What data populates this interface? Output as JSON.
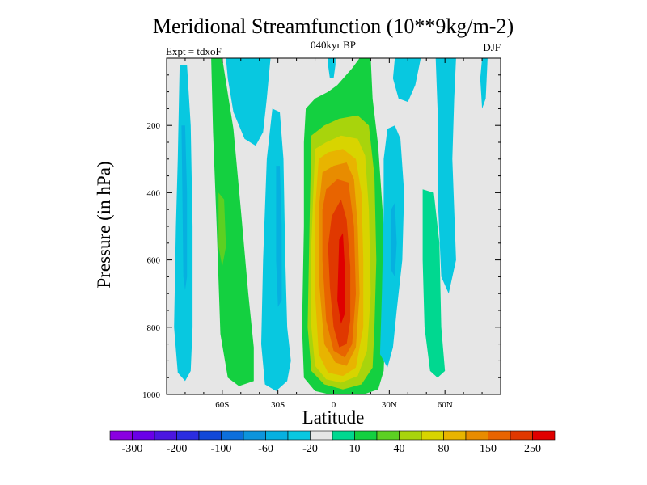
{
  "chart_data": {
    "type": "heatmap",
    "title": "Meridional Streamfunction (10**9kg/m-2)",
    "subtitle_center": "040kyr BP",
    "subtitle_left": "Expt = tdxoF",
    "subtitle_right": "DJF",
    "xlabel": "Latitude",
    "ylabel": "Pressure (in hPa)",
    "xlim": [
      -90,
      90
    ],
    "ylim": [
      1000,
      0
    ],
    "x_ticks": [
      {
        "value": -60,
        "label": "60S"
      },
      {
        "value": -30,
        "label": "30S"
      },
      {
        "value": 0,
        "label": "0"
      },
      {
        "value": 30,
        "label": "30N"
      },
      {
        "value": 60,
        "label": "60N"
      }
    ],
    "y_ticks": [
      {
        "value": 200,
        "label": "200"
      },
      {
        "value": 400,
        "label": "400"
      },
      {
        "value": 600,
        "label": "600"
      },
      {
        "value": 800,
        "label": "800"
      },
      {
        "value": 1000,
        "label": "1000"
      }
    ],
    "colorbar": {
      "labels": [
        "-300",
        "-200",
        "-100",
        "-60",
        "-20",
        "10",
        "40",
        "80",
        "150",
        "250"
      ],
      "colors": [
        "#8a00e0",
        "#6a00e8",
        "#4b16e0",
        "#2b2de0",
        "#1148d8",
        "#0d6fdc",
        "#0d94dc",
        "#06b0e0",
        "#08c8e0",
        "#e6e6e6",
        "#00d890",
        "#14d040",
        "#5cd022",
        "#a8d40c",
        "#d8d400",
        "#e8b400",
        "#e88c00",
        "#e86400",
        "#e03800",
        "#e00000"
      ]
    },
    "regions": [
      {
        "name": "blue-60s-80s",
        "color": "#08c8e0",
        "points": [
          [
            -83,
            20
          ],
          [
            -79,
            20
          ],
          [
            -77,
            200
          ],
          [
            -76,
            500
          ],
          [
            -76,
            800
          ],
          [
            -77,
            930
          ],
          [
            -80,
            960
          ],
          [
            -84,
            935
          ],
          [
            -86,
            800
          ],
          [
            -85,
            500
          ],
          [
            -84,
            300
          ]
        ]
      },
      {
        "name": "blue-60s-core",
        "color": "#06b0e0",
        "points": [
          [
            -82,
            200
          ],
          [
            -80,
            200
          ],
          [
            -79,
            400
          ],
          [
            -79,
            650
          ],
          [
            -80,
            690
          ],
          [
            -81,
            650
          ],
          [
            -81.5,
            400
          ]
        ]
      },
      {
        "name": "green-belt-60s",
        "color": "#14d040",
        "points": [
          [
            -66,
            0
          ],
          [
            -60,
            0
          ],
          [
            -54,
            210
          ],
          [
            -50,
            450
          ],
          [
            -46,
            700
          ],
          [
            -43,
            860
          ],
          [
            -43,
            960
          ],
          [
            -51,
            975
          ],
          [
            -57,
            950
          ],
          [
            -61,
            820
          ],
          [
            -63,
            500
          ],
          [
            -65,
            220
          ]
        ]
      },
      {
        "name": "green-belt-core",
        "color": "#5cd022",
        "points": [
          [
            -62,
            400
          ],
          [
            -59,
            420
          ],
          [
            -58,
            560
          ],
          [
            -60,
            620
          ],
          [
            -62,
            560
          ]
        ]
      },
      {
        "name": "blue-50s-upper",
        "color": "#08c8e0",
        "points": [
          [
            -58,
            0
          ],
          [
            -34,
            0
          ],
          [
            -36,
            120
          ],
          [
            -38,
            220
          ],
          [
            -42,
            260
          ],
          [
            -48,
            240
          ],
          [
            -54,
            160
          ],
          [
            -57,
            60
          ]
        ]
      },
      {
        "name": "blue-30s",
        "color": "#08c8e0",
        "points": [
          [
            -33,
            150
          ],
          [
            -29,
            160
          ],
          [
            -27,
            300
          ],
          [
            -26,
            600
          ],
          [
            -25,
            800
          ],
          [
            -23,
            900
          ],
          [
            -25,
            960
          ],
          [
            -31,
            990
          ],
          [
            -37,
            970
          ],
          [
            -39,
            850
          ],
          [
            -38,
            600
          ],
          [
            -36,
            300
          ]
        ]
      },
      {
        "name": "blue-30s-core",
        "color": "#06b0e0",
        "points": [
          [
            -31,
            320
          ],
          [
            -29,
            320
          ],
          [
            -28,
            500
          ],
          [
            -28,
            720
          ],
          [
            -30,
            740
          ],
          [
            -31,
            600
          ]
        ]
      },
      {
        "name": "hadley-10",
        "color": "#14d040",
        "points": [
          [
            -15,
            150
          ],
          [
            -10,
            120
          ],
          [
            -3,
            100
          ],
          [
            2,
            80
          ],
          [
            10,
            30
          ],
          [
            14,
            0
          ],
          [
            20,
            0
          ],
          [
            21,
            120
          ],
          [
            24,
            260
          ],
          [
            27,
            500
          ],
          [
            28,
            800
          ],
          [
            27,
            930
          ],
          [
            24,
            985
          ],
          [
            16,
            1000
          ],
          [
            -2,
            1000
          ],
          [
            -10,
            990
          ],
          [
            -16,
            950
          ],
          [
            -17,
            800
          ],
          [
            -16,
            500
          ],
          [
            -16,
            250
          ]
        ]
      },
      {
        "name": "hadley-40",
        "color": "#a8d40c",
        "points": [
          [
            -12,
            230
          ],
          [
            -5,
            200
          ],
          [
            3,
            180
          ],
          [
            13,
            170
          ],
          [
            19,
            200
          ],
          [
            22,
            350
          ],
          [
            23,
            600
          ],
          [
            22,
            800
          ],
          [
            21,
            920
          ],
          [
            15,
            970
          ],
          [
            5,
            985
          ],
          [
            -5,
            970
          ],
          [
            -12,
            930
          ],
          [
            -14,
            800
          ],
          [
            -13,
            500
          ]
        ]
      },
      {
        "name": "hadley-60",
        "color": "#d8d400",
        "points": [
          [
            -10,
            270
          ],
          [
            -4,
            250
          ],
          [
            4,
            230
          ],
          [
            13,
            240
          ],
          [
            17,
            290
          ],
          [
            19,
            450
          ],
          [
            20,
            700
          ],
          [
            18,
            870
          ],
          [
            13,
            945
          ],
          [
            4,
            965
          ],
          [
            -4,
            955
          ],
          [
            -10,
            915
          ],
          [
            -12,
            800
          ],
          [
            -12,
            550
          ]
        ]
      },
      {
        "name": "hadley-80",
        "color": "#e8b400",
        "points": [
          [
            -8,
            300
          ],
          [
            -3,
            280
          ],
          [
            5,
            270
          ],
          [
            12,
            300
          ],
          [
            15,
            400
          ],
          [
            16,
            600
          ],
          [
            16,
            800
          ],
          [
            12,
            920
          ],
          [
            5,
            945
          ],
          [
            -3,
            935
          ],
          [
            -8,
            880
          ],
          [
            -10,
            700
          ],
          [
            -10,
            450
          ]
        ]
      },
      {
        "name": "hadley-100",
        "color": "#e88c00",
        "points": [
          [
            -6,
            340
          ],
          [
            0,
            320
          ],
          [
            7,
            310
          ],
          [
            11,
            360
          ],
          [
            13,
            500
          ],
          [
            14,
            700
          ],
          [
            12,
            860
          ],
          [
            7,
            915
          ],
          [
            1,
            905
          ],
          [
            -5,
            850
          ],
          [
            -8,
            650
          ],
          [
            -8,
            450
          ]
        ]
      },
      {
        "name": "hadley-150",
        "color": "#e86400",
        "points": [
          [
            -4,
            390
          ],
          [
            2,
            360
          ],
          [
            8,
            370
          ],
          [
            11,
            500
          ],
          [
            12,
            700
          ],
          [
            10,
            850
          ],
          [
            6,
            890
          ],
          [
            0,
            870
          ],
          [
            -4,
            780
          ],
          [
            -6,
            600
          ],
          [
            -6,
            450
          ]
        ]
      },
      {
        "name": "hadley-250",
        "color": "#e03800",
        "points": [
          [
            -1,
            470
          ],
          [
            4,
            420
          ],
          [
            7,
            480
          ],
          [
            9,
            620
          ],
          [
            9,
            780
          ],
          [
            7,
            850
          ],
          [
            3,
            860
          ],
          [
            0,
            800
          ],
          [
            -2,
            680
          ],
          [
            -3,
            560
          ]
        ]
      },
      {
        "name": "hadley-peak",
        "color": "#e00000",
        "points": [
          [
            3,
            540
          ],
          [
            5,
            520
          ],
          [
            6,
            620
          ],
          [
            6,
            760
          ],
          [
            4,
            790
          ],
          [
            2,
            720
          ]
        ]
      },
      {
        "name": "blue-20n",
        "color": "#08c8e0",
        "points": [
          [
            29,
            210
          ],
          [
            33,
            200
          ],
          [
            36,
            240
          ],
          [
            38,
            400
          ],
          [
            37,
            600
          ],
          [
            34,
            750
          ],
          [
            32,
            860
          ],
          [
            29,
            920
          ],
          [
            25,
            880
          ],
          [
            26,
            700
          ],
          [
            27,
            450
          ],
          [
            27,
            300
          ]
        ]
      },
      {
        "name": "blue-20n-core",
        "color": "#06b0e0",
        "points": [
          [
            31,
            450
          ],
          [
            33,
            430
          ],
          [
            34,
            550
          ],
          [
            33,
            650
          ],
          [
            31,
            630
          ]
        ]
      },
      {
        "name": "green-50n",
        "color": "#00d890",
        "points": [
          [
            48,
            390
          ],
          [
            54,
            400
          ],
          [
            57,
            550
          ],
          [
            58,
            800
          ],
          [
            60,
            930
          ],
          [
            56,
            950
          ],
          [
            52,
            930
          ],
          [
            49,
            800
          ],
          [
            48,
            600
          ]
        ]
      },
      {
        "name": "blue-50n",
        "color": "#08c8e0",
        "points": [
          [
            55,
            0
          ],
          [
            66,
            0
          ],
          [
            65,
            120
          ],
          [
            64,
            300
          ],
          [
            66,
            600
          ],
          [
            62,
            700
          ],
          [
            58,
            650
          ],
          [
            56,
            400
          ],
          [
            56,
            150
          ]
        ]
      },
      {
        "name": "blue-upper-5n",
        "color": "#08c8e0",
        "points": [
          [
            -3,
            0
          ],
          [
            1,
            0
          ],
          [
            1,
            20
          ],
          [
            0,
            60
          ],
          [
            -2,
            60
          ],
          [
            -3,
            20
          ]
        ]
      },
      {
        "name": "blue-upper-30n",
        "color": "#08c8e0",
        "points": [
          [
            33,
            0
          ],
          [
            47,
            0
          ],
          [
            44,
            80
          ],
          [
            40,
            130
          ],
          [
            35,
            120
          ],
          [
            32,
            60
          ]
        ]
      },
      {
        "name": "blue-upper-80n",
        "color": "#08c8e0",
        "points": [
          [
            80,
            0
          ],
          [
            83,
            0
          ],
          [
            82,
            120
          ],
          [
            80,
            150
          ],
          [
            79,
            60
          ]
        ]
      }
    ]
  }
}
